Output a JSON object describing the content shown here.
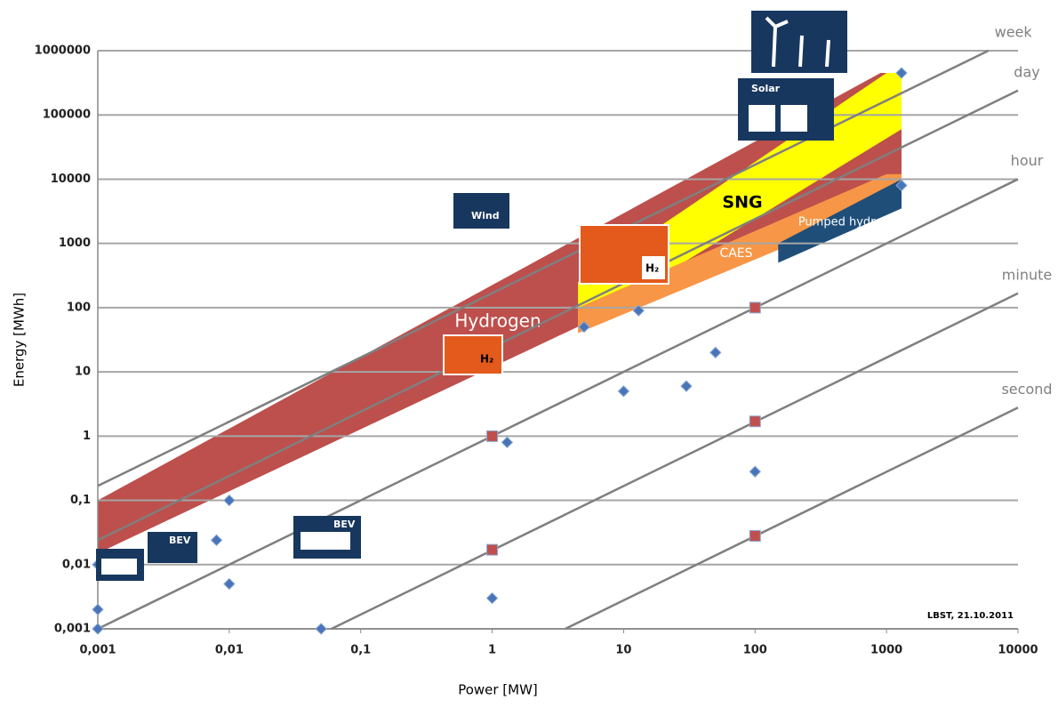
{
  "chart_data": {
    "type": "scatter",
    "xlabel": "Power [MW]",
    "ylabel": "Energy [MWh]",
    "xscale": "log",
    "yscale": "log",
    "grid": true,
    "xlim": [
      0.001,
      10000
    ],
    "ylim": [
      0.001,
      1000000
    ],
    "xticks": [
      {
        "value": 0.001,
        "label": "0,001"
      },
      {
        "value": 0.01,
        "label": "0,01"
      },
      {
        "value": 0.1,
        "label": "0,1"
      },
      1,
      10,
      100,
      1000,
      10000
    ],
    "yticks": [
      {
        "value": 0.001,
        "label": "0,001"
      },
      {
        "value": 0.01,
        "label": "0,01"
      },
      {
        "value": 0.1,
        "label": "0,1"
      },
      1,
      10,
      100,
      1000,
      10000,
      100000,
      1000000
    ],
    "regions": [
      {
        "name": "Hydrogen",
        "color": "#bd4f4c",
        "x": [
          0.001,
          900,
          1300,
          1300,
          0.001
        ],
        "y": [
          0.1,
          450000,
          450000,
          12000,
          0.015
        ]
      },
      {
        "name": "SNG",
        "color": "#ffff00",
        "x": [
          4.5,
          4.5,
          20,
          1000,
          1300,
          1300
        ],
        "y": [
          50,
          250,
          2000,
          450000,
          450000,
          60000
        ]
      },
      {
        "name": "CAES",
        "color": "#f79646",
        "x": [
          4.5,
          1000,
          1300,
          1300,
          4.5
        ],
        "y": [
          100,
          12000,
          12000,
          5000,
          40
        ]
      },
      {
        "name": "Pumped hydro",
        "color": "#1f4e79",
        "x": [
          150,
          1300,
          1300,
          150
        ],
        "y": [
          1000,
          10000,
          3500,
          500
        ]
      }
    ],
    "time_lines": [
      {
        "label": "week",
        "ratio": 168
      },
      {
        "label": "day",
        "ratio": 24
      },
      {
        "label": "hour",
        "ratio": 1
      },
      {
        "label": "minute",
        "ratio": 0.0167
      },
      {
        "label": "second",
        "ratio": 0.000278
      }
    ],
    "series": [
      {
        "color": "#4a74b8",
        "marker": "diamond",
        "x": [
          0.001,
          0.001,
          0.001,
          0.008,
          0.01,
          0.01,
          0.05,
          1,
          1.3,
          5,
          10,
          13,
          30,
          50,
          100,
          1300,
          1300
        ],
        "y": [
          0.01,
          0.002,
          0.001,
          0.024,
          0.005,
          0.1,
          0.001,
          0.003,
          0.8,
          50,
          5,
          90,
          6,
          20,
          0.28,
          8000,
          450000
        ]
      },
      {
        "color": "#c0504d",
        "marker": "square",
        "x": [
          1,
          1,
          100,
          100,
          100
        ],
        "y": [
          1,
          0.017,
          100,
          1.7,
          0.028
        ]
      }
    ],
    "icons": [
      "Wind",
      "Solar",
      "BEV",
      "BEV",
      "H₂",
      "H₂"
    ],
    "source": "LBST, 21.10.2011"
  }
}
